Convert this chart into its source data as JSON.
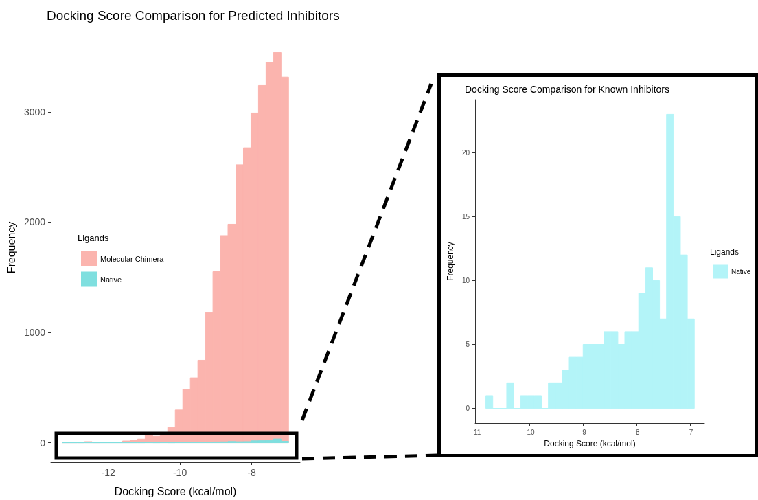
{
  "chart_data": [
    {
      "type": "histogram",
      "title": "Docking Score Comparison for Predicted Inhibitors",
      "xlabel": "Docking Score (kcal/mol)",
      "ylabel": "Frequency",
      "legend_title": "Ligands",
      "legend": "left",
      "grid": false,
      "bins": [
        -13.29,
        -13.08,
        -12.87,
        -12.66,
        -12.45,
        -12.24,
        -12.03,
        -11.82,
        -11.6,
        -11.39,
        -11.18,
        -10.97,
        -10.76,
        -10.55,
        -10.34,
        -10.13,
        -9.92,
        -9.71,
        -9.5,
        -9.29,
        -9.08,
        -8.87,
        -8.66,
        -8.44,
        -8.23,
        -8.02,
        -7.81,
        -7.6,
        -7.39,
        -7.18,
        -6.97
      ],
      "series": [
        {
          "name": "Molecular Chimera",
          "color": "#fbb4ae",
          "values": [
            0,
            0,
            0,
            10,
            0,
            5,
            5,
            5,
            16,
            23,
            33,
            72,
            58,
            78,
            140,
            297,
            485,
            588,
            748,
            1177,
            1551,
            1878,
            1981,
            2520,
            2674,
            2990,
            3239,
            3449,
            3538,
            3315
          ]
        },
        {
          "name": "Native",
          "color": "#7fdfdf",
          "values": [
            0,
            0,
            0,
            0,
            0,
            0,
            0,
            0,
            0,
            0,
            0,
            1,
            0,
            2,
            0,
            2,
            1,
            2,
            3,
            6,
            7,
            8,
            11,
            9,
            10,
            17,
            18,
            20,
            34,
            13
          ]
        }
      ],
      "xlim": [
        -13.6,
        -6.65
      ],
      "xticks": [
        -12,
        -10,
        -8
      ],
      "ylim": [
        -177,
        3715
      ],
      "yticks": [
        0,
        1000,
        2000,
        3000
      ]
    },
    {
      "type": "histogram",
      "title": "Docking Score Comparison for Known Inhibitors",
      "xlabel": "Docking Score (kcal/mol)",
      "ylabel": "Frequency",
      "legend_title": "Ligands",
      "legend": "right",
      "grid": false,
      "bins": [
        -10.82,
        -10.69,
        -10.56,
        -10.43,
        -10.3,
        -10.17,
        -10.04,
        -9.91,
        -9.78,
        -9.65,
        -9.52,
        -9.39,
        -9.26,
        -9.13,
        -9.0,
        -8.87,
        -8.74,
        -8.61,
        -8.48,
        -8.35,
        -8.22,
        -8.09,
        -7.96,
        -7.83,
        -7.7,
        -7.57,
        -7.44,
        -7.31,
        -7.18,
        -7.05,
        -6.92
      ],
      "series": [
        {
          "name": "Native",
          "color": "#b3f4f8",
          "values": [
            1,
            0,
            0,
            2,
            0,
            1,
            1,
            1,
            0,
            2,
            2,
            3,
            4,
            4,
            5,
            5,
            5,
            6,
            6,
            5,
            6,
            6,
            9,
            11,
            10,
            7,
            23,
            15,
            12,
            7
          ]
        }
      ],
      "xlim": [
        -11.02,
        -6.73
      ],
      "xticks": [
        -11,
        -10,
        -9,
        -8,
        -7
      ],
      "ylim": [
        -1.15,
        24.15
      ],
      "yticks": [
        0,
        5,
        10,
        15,
        20
      ]
    }
  ]
}
